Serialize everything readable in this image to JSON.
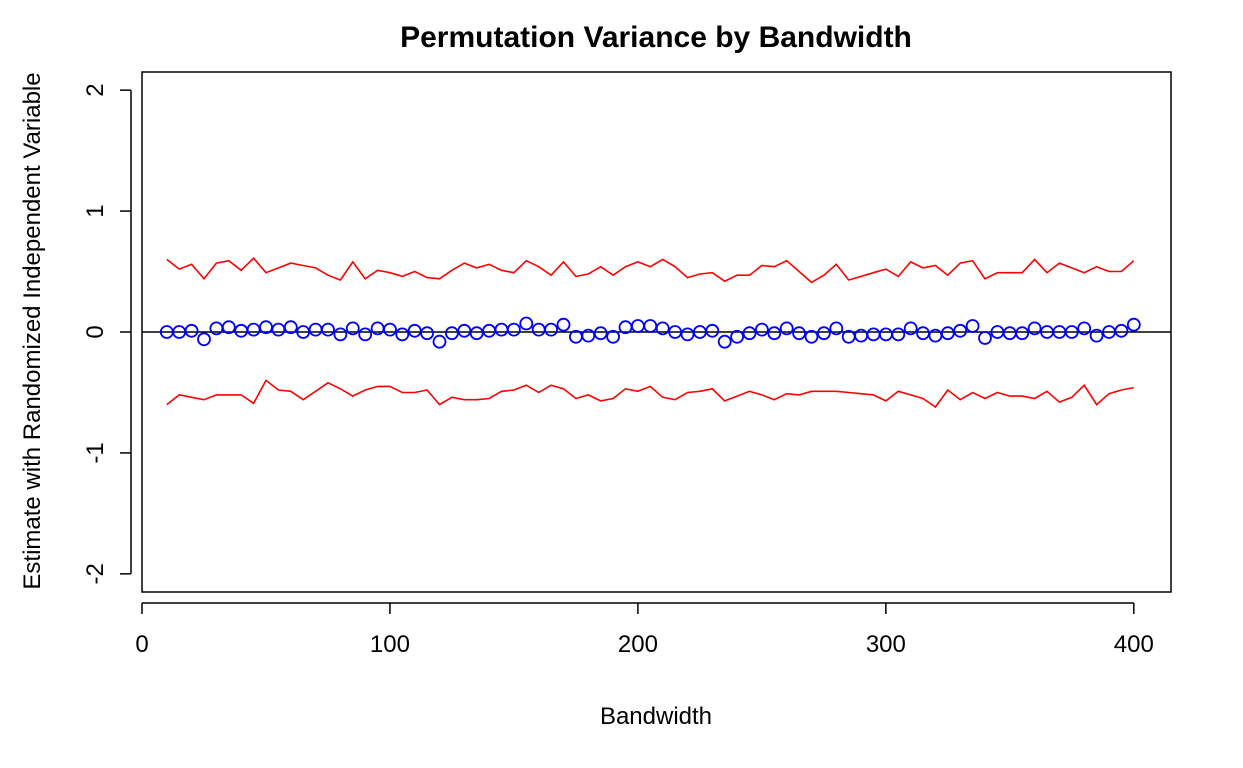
{
  "chart_data": {
    "type": "scatter",
    "title": "Permutation Variance by Bandwidth",
    "xlabel": "Bandwidth",
    "ylabel": "Estimate with Randomized Independent Variable",
    "xlim": [
      0,
      415
    ],
    "ylim": [
      -2.15,
      2.15
    ],
    "x_ticks": [
      0,
      100,
      200,
      300,
      400
    ],
    "y_ticks": [
      -2,
      -1,
      0,
      1,
      2
    ],
    "x_tick_labels": [
      "0",
      "100",
      "200",
      "300",
      "400"
    ],
    "y_tick_labels": [
      "-2",
      "-1",
      "0",
      "1",
      "2"
    ],
    "grid": false,
    "reference_line_y": 0,
    "x": [
      10,
      15,
      20,
      25,
      30,
      35,
      40,
      45,
      50,
      55,
      60,
      65,
      70,
      75,
      80,
      85,
      90,
      95,
      100,
      105,
      110,
      115,
      120,
      125,
      130,
      135,
      140,
      145,
      150,
      155,
      160,
      165,
      170,
      175,
      180,
      185,
      190,
      195,
      200,
      205,
      210,
      215,
      220,
      225,
      230,
      235,
      240,
      245,
      250,
      255,
      260,
      265,
      270,
      275,
      280,
      285,
      290,
      295,
      300,
      305,
      310,
      315,
      320,
      325,
      330,
      335,
      340,
      345,
      350,
      355,
      360,
      365,
      370,
      375,
      380,
      385,
      390,
      395,
      400
    ],
    "series": [
      {
        "type": "scatter",
        "color": "#0000ff",
        "marker": "open-circle",
        "values": [
          0.0,
          0.0,
          0.01,
          -0.06,
          0.03,
          0.04,
          0.01,
          0.02,
          0.04,
          0.02,
          0.04,
          0.0,
          0.02,
          0.02,
          -0.02,
          0.03,
          -0.02,
          0.03,
          0.02,
          -0.02,
          0.01,
          -0.01,
          -0.08,
          -0.01,
          0.01,
          -0.01,
          0.01,
          0.02,
          0.02,
          0.07,
          0.02,
          0.02,
          0.06,
          -0.04,
          -0.03,
          -0.01,
          -0.04,
          0.04,
          0.05,
          0.05,
          0.03,
          0.0,
          -0.02,
          0.0,
          0.01,
          -0.08,
          -0.04,
          -0.01,
          0.02,
          -0.01,
          0.03,
          -0.01,
          -0.04,
          -0.01,
          0.03,
          -0.04,
          -0.03,
          -0.02,
          -0.02,
          -0.02,
          0.03,
          -0.01,
          -0.03,
          -0.01,
          0.01,
          0.05,
          -0.05,
          0.0,
          -0.01,
          -0.01,
          0.03,
          0.0,
          0.0,
          0.0,
          0.03,
          -0.03,
          0.0,
          0.01,
          0.06
        ]
      },
      {
        "type": "line",
        "color": "#ff0000",
        "values": [
          0.6,
          0.52,
          0.56,
          0.44,
          0.57,
          0.59,
          0.51,
          0.61,
          0.49,
          0.53,
          0.57,
          0.55,
          0.53,
          0.47,
          0.43,
          0.58,
          0.44,
          0.51,
          0.49,
          0.46,
          0.5,
          0.45,
          0.44,
          0.51,
          0.57,
          0.53,
          0.56,
          0.51,
          0.49,
          0.59,
          0.54,
          0.47,
          0.58,
          0.46,
          0.48,
          0.54,
          0.47,
          0.54,
          0.58,
          0.54,
          0.6,
          0.54,
          0.45,
          0.48,
          0.49,
          0.42,
          0.47,
          0.47,
          0.55,
          0.54,
          0.59,
          0.5,
          0.41,
          0.47,
          0.56,
          0.43,
          0.46,
          0.49,
          0.52,
          0.46,
          0.58,
          0.53,
          0.55,
          0.47,
          0.57,
          0.59,
          0.44,
          0.49,
          0.49,
          0.49,
          0.6,
          0.49,
          0.57,
          0.53,
          0.49,
          0.54,
          0.5,
          0.5,
          0.59
        ]
      },
      {
        "type": "line",
        "color": "#ff0000",
        "values": [
          -0.6,
          -0.52,
          -0.54,
          -0.56,
          -0.52,
          -0.52,
          -0.52,
          -0.59,
          -0.4,
          -0.48,
          -0.49,
          -0.56,
          -0.49,
          -0.42,
          -0.47,
          -0.53,
          -0.48,
          -0.45,
          -0.45,
          -0.5,
          -0.5,
          -0.48,
          -0.6,
          -0.54,
          -0.56,
          -0.56,
          -0.55,
          -0.49,
          -0.48,
          -0.44,
          -0.5,
          -0.44,
          -0.47,
          -0.55,
          -0.52,
          -0.57,
          -0.55,
          -0.47,
          -0.49,
          -0.45,
          -0.54,
          -0.56,
          -0.5,
          -0.49,
          -0.47,
          -0.57,
          -0.53,
          -0.49,
          -0.52,
          -0.56,
          -0.51,
          -0.52,
          -0.49,
          -0.49,
          -0.49,
          -0.5,
          -0.51,
          -0.52,
          -0.57,
          -0.49,
          -0.52,
          -0.55,
          -0.62,
          -0.48,
          -0.56,
          -0.5,
          -0.55,
          -0.5,
          -0.53,
          -0.53,
          -0.55,
          -0.49,
          -0.58,
          -0.54,
          -0.44,
          -0.6,
          -0.51,
          -0.48,
          -0.46
        ]
      }
    ]
  }
}
